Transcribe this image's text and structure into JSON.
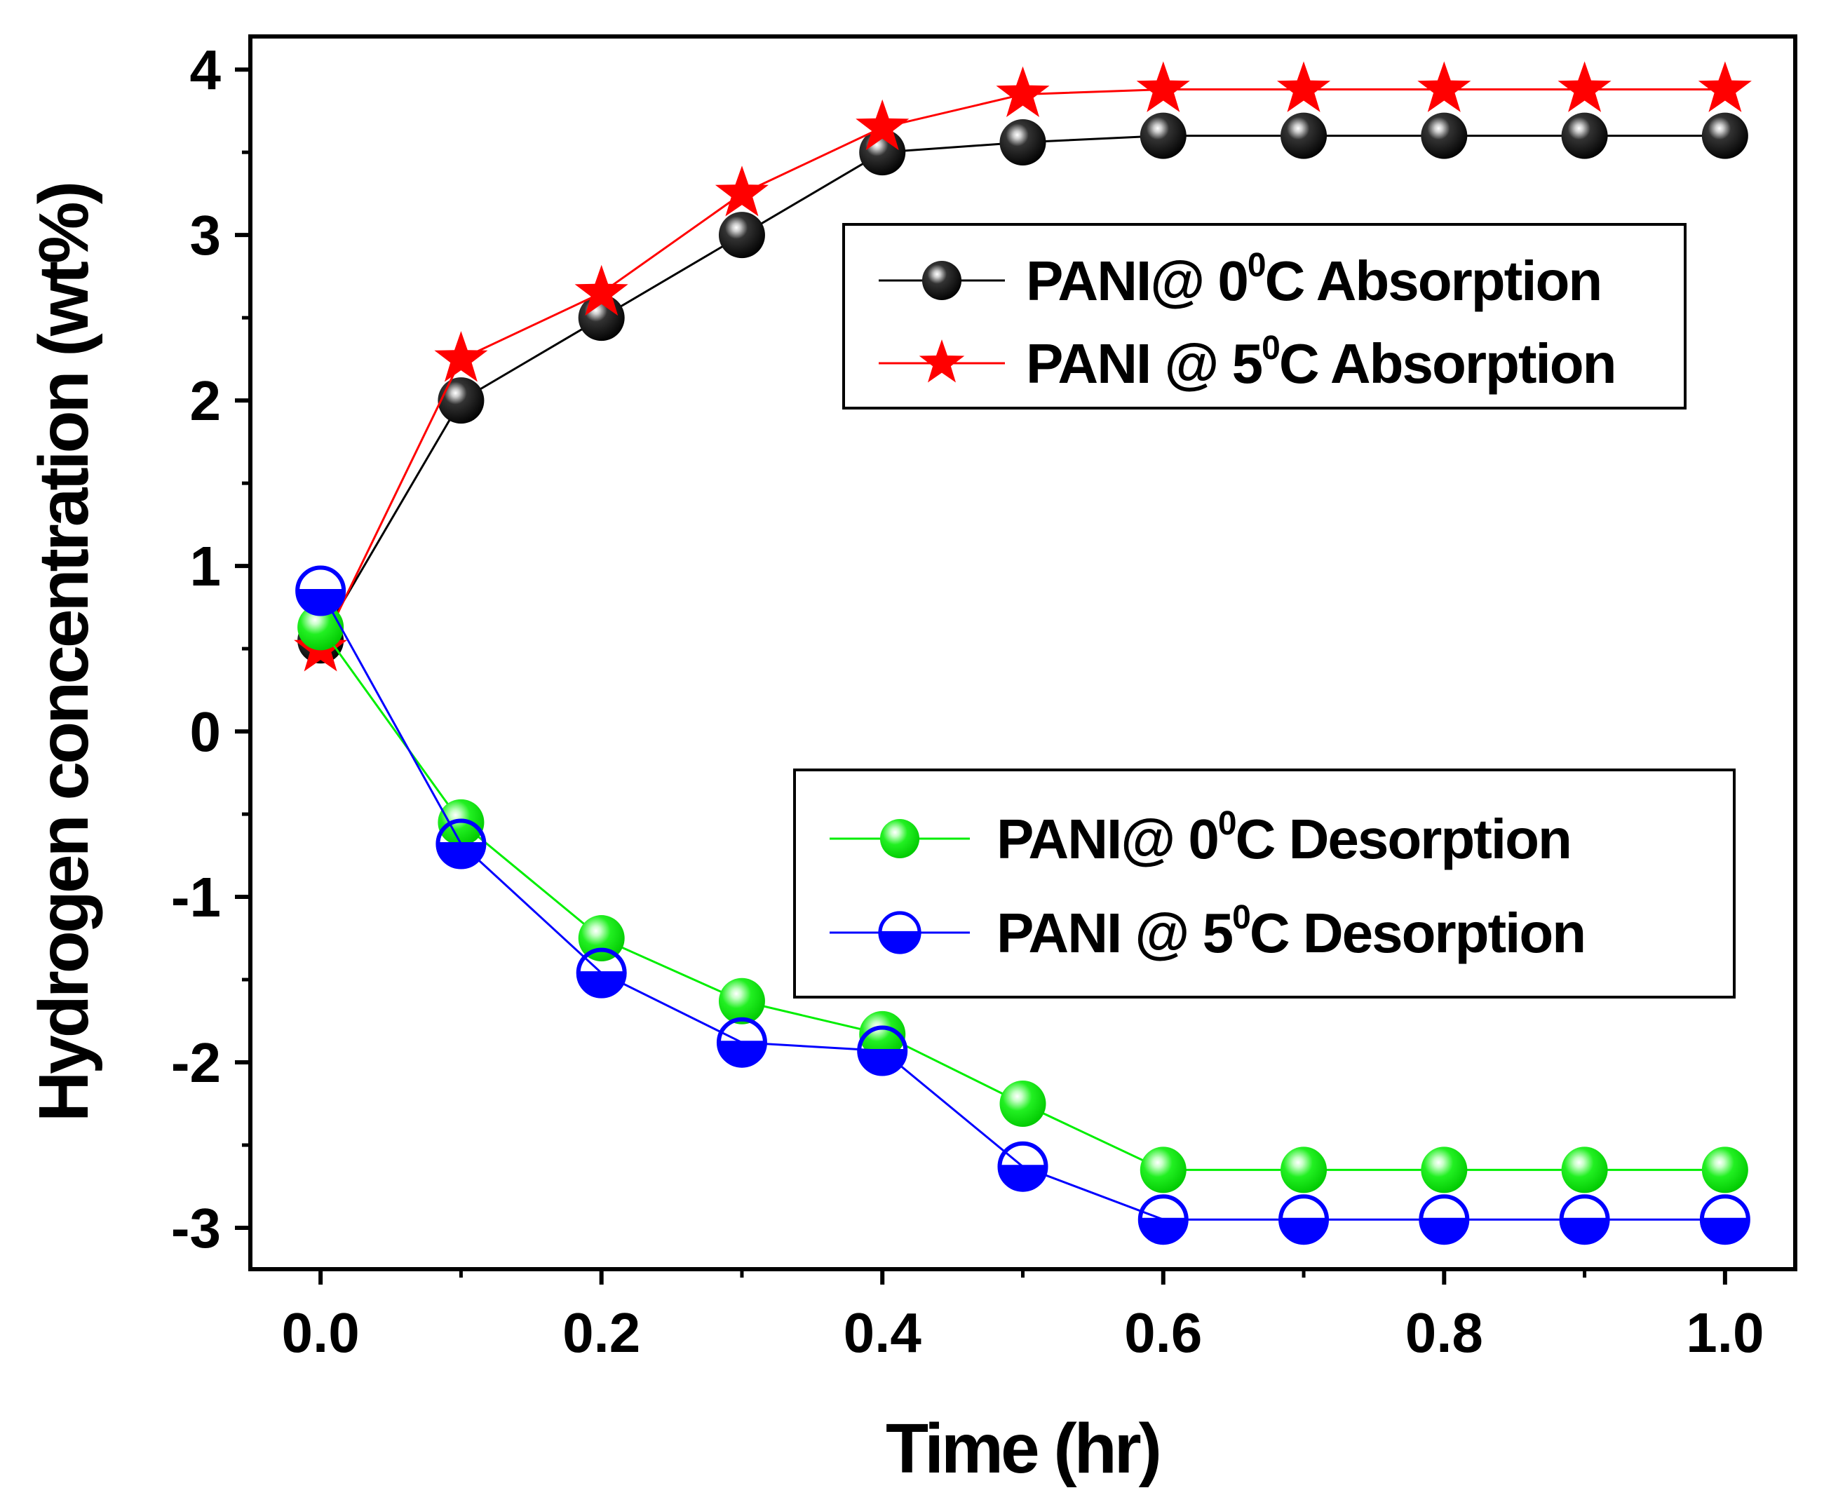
{
  "chart_data": {
    "type": "line",
    "title": "",
    "xlabel": "Time (hr)",
    "ylabel": "Hydrogen concentration (wt%)",
    "xlim": [
      -0.05,
      1.05
    ],
    "ylim": [
      -3.25,
      4.2
    ],
    "xticks": [
      "0.0",
      "0.2",
      "0.4",
      "0.6",
      "0.8",
      "1.0"
    ],
    "yticks": [
      "-3",
      "-2",
      "-1",
      "0",
      "1",
      "2",
      "3",
      "4"
    ],
    "x": [
      0.0,
      0.1,
      0.2,
      0.3,
      0.4,
      0.5,
      0.6,
      0.7,
      0.8,
      0.9,
      1.0
    ],
    "series": [
      {
        "name": "PANI@0°C Absorption",
        "legend_main": "PANI@ 0",
        "legend_sup": "0",
        "legend_tail": "C Absorption",
        "color": "#000000",
        "marker": "sphere",
        "values": [
          0.55,
          2.0,
          2.5,
          3.0,
          3.5,
          3.56,
          3.6,
          3.6,
          3.6,
          3.6,
          3.6
        ]
      },
      {
        "name": "PANI @5°C Absorption",
        "legend_main": "PANI @ 5",
        "legend_sup": "0",
        "legend_tail": "C Absorption",
        "color": "#ff0000",
        "marker": "star",
        "values": [
          0.5,
          2.25,
          2.65,
          3.25,
          3.65,
          3.85,
          3.88,
          3.88,
          3.88,
          3.88,
          3.88
        ]
      },
      {
        "name": "PANI@0°C Desorption",
        "legend_main": "PANI@ 0",
        "legend_sup": "0",
        "legend_tail": "C Desorption",
        "color": "#00ee00",
        "marker": "sphere",
        "values": [
          0.63,
          -0.55,
          -1.25,
          -1.63,
          -1.83,
          -2.25,
          -2.65,
          -2.65,
          -2.65,
          -2.65,
          -2.65
        ]
      },
      {
        "name": "PANI @5°C Desorption",
        "legend_main": "PANI @ 5",
        "legend_sup": "0",
        "legend_tail": "C Desorption",
        "color": "#0000ff",
        "marker": "half-circle",
        "values": [
          0.85,
          -0.68,
          -1.46,
          -1.88,
          -1.93,
          -2.63,
          -2.95,
          -2.95,
          -2.95,
          -2.95,
          -2.95
        ]
      }
    ],
    "legends": [
      {
        "position": "upper-right",
        "series": [
          0,
          1
        ]
      },
      {
        "position": "lower-right",
        "series": [
          2,
          3
        ]
      }
    ]
  }
}
